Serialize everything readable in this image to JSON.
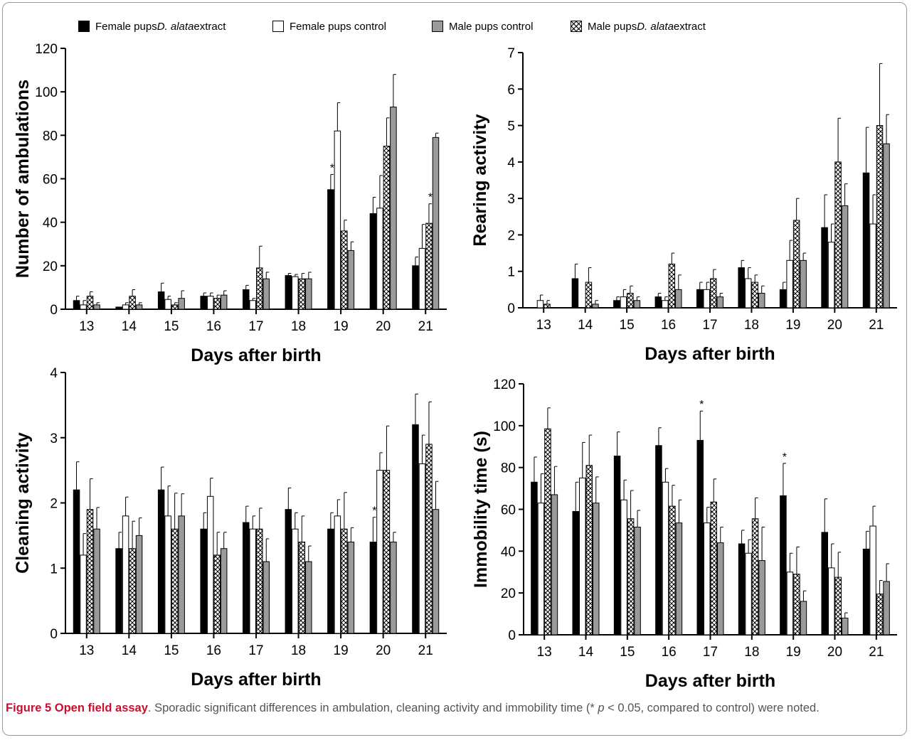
{
  "legend": [
    {
      "name_prefix": "Female pups ",
      "name_italic": "D. alata",
      "name_suffix": " extract",
      "pattern": "black"
    },
    {
      "name_prefix": "Female pups control",
      "name_italic": "",
      "name_suffix": "",
      "pattern": "white"
    },
    {
      "name_prefix": "Male pups control",
      "name_italic": "",
      "name_suffix": "",
      "pattern": "gray"
    },
    {
      "name_prefix": "Male pups ",
      "name_italic": "D. alata",
      "name_suffix": " extract",
      "pattern": "crosshatch"
    }
  ],
  "colors": {
    "black": "#000000",
    "white": "#ffffff",
    "gray": "#9a9a9a",
    "caption_red": "#c8102e"
  },
  "caption": {
    "figure_label": "Figure 5 Open field assay",
    "text_before_p": ". Sporadic significant differences in ambulation, cleaning activity and immobility time (* ",
    "p_symbol": "p",
    "text_after_p": " < 0.05, compared to control) were noted."
  },
  "chart_data": [
    {
      "type": "bar",
      "ylabel": "Number of ambulations",
      "xlabel": "Days after birth",
      "ylim": [
        0,
        120
      ],
      "yticks": [
        0,
        20,
        40,
        60,
        80,
        100,
        120
      ],
      "categories": [
        "13",
        "14",
        "15",
        "16",
        "17",
        "18",
        "19",
        "20",
        "21"
      ],
      "series_order": [
        "black",
        "white",
        "crosshatch",
        "gray"
      ],
      "series": [
        {
          "pattern": "black",
          "values": [
            4,
            1,
            8,
            6,
            9,
            15.5,
            55,
            44,
            20
          ],
          "errors": [
            2,
            0,
            4,
            1.5,
            2,
            1,
            7,
            7.5,
            4
          ]
        },
        {
          "pattern": "white",
          "values": [
            2,
            2,
            4.5,
            6,
            4,
            15,
            82,
            46.5,
            28
          ],
          "errors": [
            2,
            1,
            1.5,
            1.5,
            1,
            1,
            13,
            15,
            11
          ]
        },
        {
          "pattern": "crosshatch",
          "values": [
            6,
            6,
            2,
            5,
            19,
            14,
            36,
            75,
            39.5
          ],
          "errors": [
            2,
            3,
            1,
            1.5,
            10,
            2.5,
            5,
            13,
            9
          ]
        },
        {
          "pattern": "gray",
          "values": [
            2,
            2,
            5,
            6.5,
            14,
            14,
            27,
            93,
            79
          ],
          "errors": [
            1,
            1,
            3.5,
            2,
            3,
            3,
            4,
            15,
            2
          ]
        }
      ],
      "significance": [
        {
          "category": "19",
          "series": "black",
          "label": "*"
        },
        {
          "category": "21",
          "series": "crosshatch",
          "label": "*"
        }
      ]
    },
    {
      "type": "bar",
      "ylabel": "Rearing activity",
      "xlabel": "Days after birth",
      "ylim": [
        0,
        7
      ],
      "yticks": [
        0,
        1,
        2,
        3,
        4,
        5,
        6,
        7
      ],
      "categories": [
        "13",
        "14",
        "15",
        "16",
        "17",
        "18",
        "19",
        "20",
        "21"
      ],
      "series_order": [
        "black",
        "white",
        "crosshatch",
        "gray"
      ],
      "series": [
        {
          "pattern": "black",
          "values": [
            0,
            0.8,
            0.2,
            0.3,
            0.5,
            1.1,
            0.5,
            2.2,
            3.7
          ],
          "errors": [
            0,
            0.4,
            0.1,
            0.1,
            0.2,
            0.2,
            0.2,
            0.9,
            1.25
          ]
        },
        {
          "pattern": "white",
          "values": [
            0.2,
            0,
            0.3,
            0.2,
            0.5,
            0.8,
            1.3,
            1.8,
            2.3
          ],
          "errors": [
            0.15,
            0,
            0.2,
            0.1,
            0.2,
            0.3,
            0.55,
            0.5,
            0.8
          ]
        },
        {
          "pattern": "crosshatch",
          "values": [
            0.1,
            0.7,
            0.4,
            1.2,
            0.8,
            0.7,
            2.4,
            4.0,
            5.0
          ],
          "errors": [
            0.1,
            0.4,
            0.2,
            0.3,
            0.25,
            0.2,
            0.6,
            1.2,
            1.7
          ]
        },
        {
          "pattern": "gray",
          "values": [
            0,
            0.1,
            0.2,
            0.5,
            0.3,
            0.4,
            1.3,
            2.8,
            4.5
          ],
          "errors": [
            0,
            0.1,
            0.1,
            0.4,
            0.1,
            0.2,
            0.2,
            0.6,
            0.8
          ]
        }
      ],
      "significance": []
    },
    {
      "type": "bar",
      "ylabel": "Cleaning activity",
      "xlabel": "Days after birth",
      "ylim": [
        0,
        4
      ],
      "yticks": [
        0,
        1,
        2,
        3,
        4
      ],
      "categories": [
        "13",
        "14",
        "15",
        "16",
        "17",
        "18",
        "19",
        "20",
        "21"
      ],
      "series_order": [
        "black",
        "white",
        "crosshatch",
        "gray"
      ],
      "series": [
        {
          "pattern": "black",
          "values": [
            2.2,
            1.3,
            2.2,
            1.6,
            1.7,
            1.9,
            1.6,
            1.4,
            3.2
          ],
          "errors": [
            0.43,
            0.25,
            0.35,
            0.25,
            0.25,
            0.33,
            0.25,
            0.38,
            0.47
          ]
        },
        {
          "pattern": "white",
          "values": [
            1.2,
            1.8,
            1.8,
            2.1,
            1.6,
            1.6,
            1.8,
            2.5,
            2.6
          ],
          "errors": [
            0.33,
            0.29,
            0.46,
            0.28,
            0.2,
            0.25,
            0.25,
            0.27,
            0.44
          ]
        },
        {
          "pattern": "crosshatch",
          "values": [
            1.9,
            1.3,
            1.6,
            1.2,
            1.6,
            1.4,
            1.6,
            2.5,
            2.9
          ],
          "errors": [
            0.47,
            0.42,
            0.55,
            0.35,
            0.32,
            0.4,
            0.56,
            0.68,
            0.65
          ]
        },
        {
          "pattern": "gray",
          "values": [
            1.6,
            1.5,
            1.8,
            1.3,
            1.1,
            1.1,
            1.4,
            1.4,
            1.9
          ],
          "errors": [
            0.33,
            0.27,
            0.34,
            0.25,
            0.35,
            0.24,
            0.22,
            0.15,
            0.43
          ]
        }
      ],
      "significance": [
        {
          "category": "20",
          "series": "black",
          "label": "*"
        }
      ]
    },
    {
      "type": "bar",
      "ylabel": "Immobility time (s)",
      "xlabel": "Days after birth",
      "ylim": [
        0,
        120
      ],
      "yticks": [
        0,
        20,
        40,
        60,
        80,
        100,
        120
      ],
      "categories": [
        "13",
        "14",
        "15",
        "16",
        "17",
        "18",
        "19",
        "20",
        "21"
      ],
      "series_order": [
        "black",
        "white",
        "crosshatch",
        "gray"
      ],
      "series": [
        {
          "pattern": "black",
          "values": [
            73,
            59,
            85.5,
            90.5,
            93,
            43.5,
            66.5,
            49,
            41
          ],
          "errors": [
            12,
            14,
            11.5,
            8.5,
            14,
            6.5,
            15.5,
            16,
            8.5
          ]
        },
        {
          "pattern": "white",
          "values": [
            63,
            75,
            64.5,
            73,
            53.5,
            39,
            30,
            32,
            52
          ],
          "errors": [
            14,
            17,
            9.5,
            6.5,
            7.5,
            6.5,
            9,
            11.5,
            9.5
          ]
        },
        {
          "pattern": "crosshatch",
          "values": [
            98.5,
            81,
            55.5,
            61.5,
            63.5,
            55.5,
            29,
            27.5,
            19.5
          ],
          "errors": [
            10,
            14.5,
            13.5,
            10,
            11,
            10,
            13,
            12,
            6.5
          ]
        },
        {
          "pattern": "gray",
          "values": [
            67,
            63,
            51.5,
            53.5,
            44,
            35.5,
            16,
            8,
            25.5
          ],
          "errors": [
            13.5,
            12.5,
            8,
            11,
            7.5,
            16,
            5,
            2.5,
            8.5
          ]
        }
      ],
      "significance": [
        {
          "category": "17",
          "series": "black",
          "label": "*"
        },
        {
          "category": "19",
          "series": "black",
          "label": "*"
        }
      ]
    }
  ]
}
